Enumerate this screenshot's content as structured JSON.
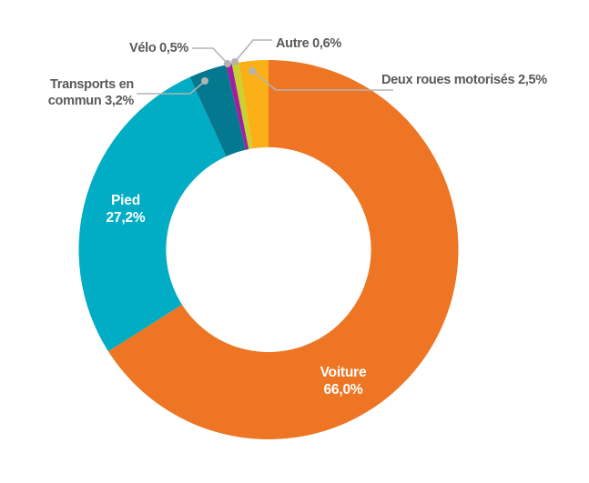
{
  "chart_data": {
    "type": "pie",
    "subtype": "donut",
    "title": "",
    "unit": "%",
    "categories": [
      "Voiture",
      "Pied",
      "Transports en commun",
      "Vélo",
      "Autre",
      "Deux roues motorisés"
    ],
    "values": [
      66.0,
      27.2,
      3.2,
      0.5,
      0.6,
      2.5
    ],
    "series": [
      {
        "slug": "voiture",
        "label": "Voiture",
        "value": 66.0,
        "display_value": "66,0%",
        "color": "#EE7523",
        "label_placement": "inside"
      },
      {
        "slug": "pied",
        "label": "Pied",
        "value": 27.2,
        "display_value": "27,2%",
        "color": "#00ADC4",
        "label_placement": "inside"
      },
      {
        "slug": "transports-en-commun",
        "label": "Transports en commun",
        "value": 3.2,
        "display_value": "3,2%",
        "color": "#04788E",
        "label_placement": "callout"
      },
      {
        "slug": "velo",
        "label": "Vélo",
        "value": 0.5,
        "display_value": "0,5%",
        "color": "#9E22A0",
        "label_placement": "callout"
      },
      {
        "slug": "autre",
        "label": "Autre",
        "value": 0.6,
        "display_value": "0,6%",
        "color": "#C9D32F",
        "label_placement": "callout"
      },
      {
        "slug": "deux-roues-motorises",
        "label": "Deux roues motorisés",
        "value": 2.5,
        "display_value": "2,5%",
        "color": "#FBB017",
        "label_placement": "callout"
      }
    ],
    "start_angle_deg": 0,
    "direction": "clockwise",
    "donut_hole_ratio": 0.54,
    "legend": "none",
    "grid": false,
    "label_style": {
      "text_color": "#58595B",
      "leader_line_color": "#B3B3B3",
      "inside_label_color": "#FFFFFF"
    }
  },
  "labels": {
    "velo": "Vélo 0,5%",
    "autre": "Autre 0,6%",
    "deux_roues": "Deux roues motorisés 2,5%",
    "transports_line1": "Transports en",
    "transports_line2": "commun 3,2%",
    "pied_line1": "Pied",
    "pied_line2": "27,2%",
    "voiture_line1": "Voiture",
    "voiture_line2": "66,0%"
  }
}
